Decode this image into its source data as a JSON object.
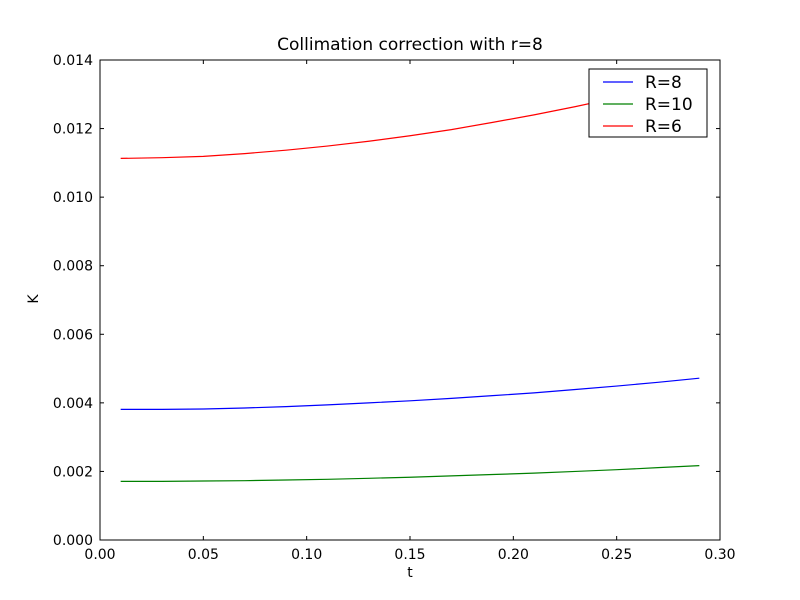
{
  "chart_data": {
    "type": "line",
    "title": "Collimation correction with r=8",
    "xlabel": "t",
    "ylabel": "K",
    "xlim": [
      0.0,
      0.3
    ],
    "ylim": [
      0.0,
      0.014
    ],
    "x_ticks": [
      "0.00",
      "0.05",
      "0.10",
      "0.15",
      "0.20",
      "0.25",
      "0.30"
    ],
    "y_ticks": [
      "0.000",
      "0.002",
      "0.004",
      "0.006",
      "0.008",
      "0.010",
      "0.012",
      "0.014"
    ],
    "grid": false,
    "legend_position": "top-right",
    "x": [
      0.01,
      0.03,
      0.05,
      0.07,
      0.09,
      0.11,
      0.13,
      0.15,
      0.17,
      0.19,
      0.21,
      0.23,
      0.25,
      0.27,
      0.29
    ],
    "series": [
      {
        "name": "R=8",
        "color": "#0000ff",
        "values": [
          0.00381,
          0.00381,
          0.00382,
          0.00385,
          0.00389,
          0.00394,
          0.004,
          0.00406,
          0.00413,
          0.00421,
          0.00429,
          0.00439,
          0.00449,
          0.0046,
          0.00472
        ]
      },
      {
        "name": "R=10",
        "color": "#008000",
        "values": [
          0.00171,
          0.00171,
          0.00172,
          0.00173,
          0.00175,
          0.00177,
          0.0018,
          0.00183,
          0.00187,
          0.00191,
          0.00195,
          0.002,
          0.00205,
          0.00211,
          0.00217
        ]
      },
      {
        "name": "R=6",
        "color": "#ff0000",
        "values": [
          0.01113,
          0.01115,
          0.01119,
          0.01127,
          0.01137,
          0.01149,
          0.01163,
          0.01179,
          0.01197,
          0.01218,
          0.0124,
          0.01264,
          0.0129,
          0.01318,
          0.01348
        ]
      }
    ]
  }
}
